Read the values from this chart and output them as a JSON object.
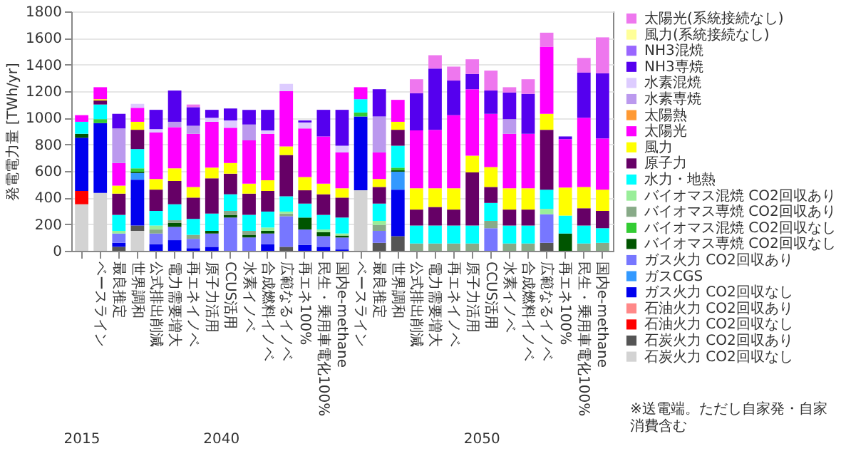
{
  "chart_data": {
    "type": "bar",
    "stacked": true,
    "ylabel": "発電電力量 [TWh/yr]",
    "ylim": [
      0,
      1800
    ],
    "yticks": [
      0,
      200,
      400,
      600,
      800,
      1000,
      1200,
      1400,
      1600,
      1800
    ],
    "grid": "y",
    "legend": "right",
    "categories": [
      null,
      "ベースライン",
      "最良推定",
      "世界調和",
      "公式排出削減",
      "電力需要増大",
      "再エネイノベ",
      "原子力活用",
      "CCUS活用",
      "水素イノベ",
      "合成燃料イノベ",
      "広範なるイノベ",
      "再エネ100%",
      "民生・乗用車電化100%",
      "国内e-methane",
      "ベースライン",
      "最良推定",
      "世界調和",
      "公式排出削減",
      "電力需要増大",
      "再エネイノベ",
      "原子力活用",
      "CCUS活用",
      "水素イノベ",
      "合成燃料イノベ",
      "広範なるイノベ",
      "再エネ100%",
      "民生・乗用車電化100%",
      "国内e-methane"
    ],
    "annotations": [
      "2015",
      "2040",
      "2050",
      "※送電端。ただし自家発・自家消費含む"
    ],
    "series": [
      {
        "name": "石炭火力 CO2回収なし",
        "color": "#d3d3d3",
        "values": [
          350,
          435,
          null,
          150,
          null,
          null,
          null,
          null,
          null,
          null,
          null,
          null,
          null,
          null,
          null,
          455,
          null,
          null,
          null,
          null,
          null,
          null,
          null,
          null,
          null,
          null,
          null,
          null,
          null
        ]
      },
      {
        "name": "石炭火力 CO2回収あり",
        "color": "#555555",
        "values": [
          null,
          null,
          30,
          40,
          null,
          null,
          null,
          null,
          null,
          null,
          null,
          30,
          null,
          null,
          null,
          null,
          60,
          110,
          null,
          null,
          null,
          null,
          null,
          null,
          null,
          60,
          null,
          null,
          null
        ]
      },
      {
        "name": "石油火力 CO2回収なし",
        "color": "#ff0000",
        "values": [
          100,
          null,
          null,
          null,
          null,
          null,
          null,
          null,
          null,
          null,
          null,
          null,
          null,
          null,
          null,
          null,
          null,
          null,
          null,
          null,
          null,
          null,
          null,
          null,
          null,
          null,
          null,
          null,
          null
        ]
      },
      {
        "name": "石油火力 CO2回収あり",
        "color": "#ff8888",
        "values": [
          null,
          null,
          null,
          null,
          null,
          null,
          null,
          null,
          null,
          null,
          null,
          null,
          null,
          null,
          null,
          null,
          null,
          null,
          null,
          null,
          null,
          null,
          null,
          null,
          null,
          null,
          null,
          null,
          null
        ]
      },
      {
        "name": "ガス火力 CO2回収なし",
        "color": "#0000ee",
        "values": [
          400,
          525,
          30,
          345,
          50,
          80,
          20,
          30,
          null,
          null,
          50,
          null,
          45,
          30,
          10,
          555,
          null,
          350,
          null,
          null,
          null,
          null,
          null,
          null,
          null,
          null,
          null,
          null,
          null
        ]
      },
      {
        "name": "ガスCGS",
        "color": "#3399ff",
        "values": [
          null,
          null,
          null,
          50,
          null,
          null,
          null,
          null,
          null,
          null,
          null,
          null,
          null,
          null,
          null,
          null,
          null,
          135,
          null,
          null,
          null,
          null,
          null,
          null,
          null,
          null,
          null,
          null,
          null
        ]
      },
      {
        "name": "ガス火力 CO2回収あり",
        "color": "#7777ff",
        "values": [
          null,
          null,
          70,
          null,
          80,
          100,
          70,
          100,
          250,
          100,
          80,
          230,
          115,
          80,
          90,
          null,
          90,
          null,
          null,
          null,
          null,
          null,
          170,
          null,
          null,
          215,
          null,
          null,
          null
        ]
      },
      {
        "name": "バイオマス専焼 CO2回収なし",
        "color": "#005500",
        "values": [
          30,
          null,
          null,
          10,
          null,
          30,
          null,
          20,
          20,
          20,
          20,
          null,
          90,
          30,
          15,
          null,
          null,
          10,
          null,
          null,
          null,
          null,
          null,
          null,
          null,
          null,
          130,
          null,
          null
        ]
      },
      {
        "name": "バイオマス混焼 CO2回収なし",
        "color": "#33cc33",
        "values": [
          null,
          30,
          null,
          25,
          null,
          null,
          null,
          null,
          null,
          null,
          null,
          null,
          null,
          null,
          null,
          30,
          null,
          20,
          null,
          null,
          null,
          null,
          null,
          null,
          null,
          null,
          null,
          null,
          null
        ]
      },
      {
        "name": "バイオマス専焼 CO2回収あり",
        "color": "#88aa88",
        "values": [
          null,
          null,
          null,
          null,
          30,
          20,
          30,
          null,
          30,
          30,
          null,
          20,
          null,
          null,
          null,
          null,
          45,
          null,
          55,
          55,
          55,
          55,
          55,
          55,
          55,
          null,
          null,
          55,
          60
        ]
      },
      {
        "name": "バイオマス混焼 CO2回収あり",
        "color": "#99ee99",
        "values": [
          null,
          null,
          20,
          null,
          30,
          null,
          null,
          null,
          null,
          null,
          25,
          15,
          null,
          20,
          15,
          null,
          30,
          null,
          null,
          null,
          null,
          null,
          null,
          null,
          null,
          40,
          null,
          null,
          null
        ]
      },
      {
        "name": "水力・地熱",
        "color": "#00ffff",
        "values": [
          90,
          110,
          120,
          145,
          110,
          120,
          120,
          130,
          125,
          120,
          120,
          115,
          105,
          110,
          120,
          100,
          130,
          165,
          135,
          135,
          135,
          135,
          135,
          135,
          135,
          145,
          135,
          135,
          110
        ]
      },
      {
        "name": "原子力",
        "color": "#660066",
        "values": [
          null,
          30,
          160,
          145,
          160,
          175,
          160,
          265,
          155,
          160,
          155,
          310,
          100,
          155,
          150,
          null,
          125,
          120,
          120,
          140,
          120,
          400,
          120,
          120,
          120,
          450,
          null,
          130,
          130
        ]
      },
      {
        "name": "風力",
        "color": "#ffff00",
        "values": [
          null,
          10,
          60,
          60,
          80,
          95,
          80,
          80,
          80,
          75,
          80,
          65,
          100,
          80,
          70,
          null,
          60,
          60,
          160,
          140,
          160,
          125,
          150,
          160,
          160,
          120,
          210,
          160,
          160
        ]
      },
      {
        "name": "太陽光",
        "color": "#ff00ff",
        "values": [
          50,
          90,
          170,
          105,
          350,
          310,
          400,
          345,
          265,
          325,
          350,
          415,
          365,
          355,
          270,
          90,
          200,
          165,
          435,
          440,
          550,
          500,
          400,
          410,
          410,
          505,
          365,
          520,
          385
        ]
      },
      {
        "name": "太陽熱",
        "color": "#ff9933",
        "values": [
          null,
          null,
          null,
          null,
          null,
          null,
          null,
          null,
          null,
          null,
          null,
          null,
          null,
          null,
          null,
          null,
          null,
          null,
          null,
          null,
          null,
          null,
          null,
          null,
          null,
          null,
          null,
          null,
          null
        ]
      },
      {
        "name": "水素専焼",
        "color": "#bb99ee",
        "values": [
          null,
          null,
          260,
          null,
          null,
          40,
          60,
          null,
          null,
          120,
          null,
          null,
          null,
          null,
          null,
          null,
          270,
          null,
          null,
          null,
          null,
          null,
          null,
          110,
          null,
          null,
          null,
          null,
          null
        ]
      },
      {
        "name": "水素混焼",
        "color": "#ddccff",
        "values": [
          null,
          null,
          null,
          30,
          25,
          null,
          null,
          30,
          55,
          null,
          25,
          55,
          45,
          null,
          50,
          null,
          null,
          null,
          null,
          null,
          null,
          null,
          null,
          null,
          null,
          null,
          null,
          null,
          null
        ]
      },
      {
        "name": "NH3専焼",
        "color": "#5500ee",
        "values": [
          null,
          null,
          110,
          null,
          145,
          235,
          140,
          60,
          90,
          110,
          155,
          null,
          15,
          200,
          270,
          null,
          205,
          null,
          280,
          460,
          260,
          115,
          175,
          200,
          300,
          null,
          20,
          340,
          490
        ]
      },
      {
        "name": "NH3混焼",
        "color": "#9966ff",
        "values": [
          null,
          null,
          null,
          null,
          null,
          null,
          null,
          null,
          null,
          null,
          null,
          null,
          null,
          null,
          null,
          null,
          null,
          null,
          null,
          null,
          null,
          null,
          null,
          null,
          null,
          null,
          null,
          null,
          null
        ]
      },
      {
        "name": "風力(系統接続なし)",
        "color": "#ffff99",
        "values": [
          null,
          null,
          null,
          null,
          null,
          null,
          null,
          null,
          null,
          null,
          null,
          null,
          null,
          null,
          null,
          null,
          null,
          null,
          null,
          null,
          null,
          null,
          null,
          null,
          null,
          null,
          null,
          null,
          null
        ]
      },
      {
        "name": "太陽光(系統接続なし)",
        "color": "#ee77ee",
        "values": [
          null,
          null,
          null,
          null,
          null,
          null,
          20,
          null,
          null,
          null,
          null,
          null,
          null,
          null,
          null,
          null,
          null,
          null,
          105,
          100,
          105,
          110,
          150,
          40,
          110,
          105,
          null,
          110,
          270
        ]
      }
    ]
  }
}
